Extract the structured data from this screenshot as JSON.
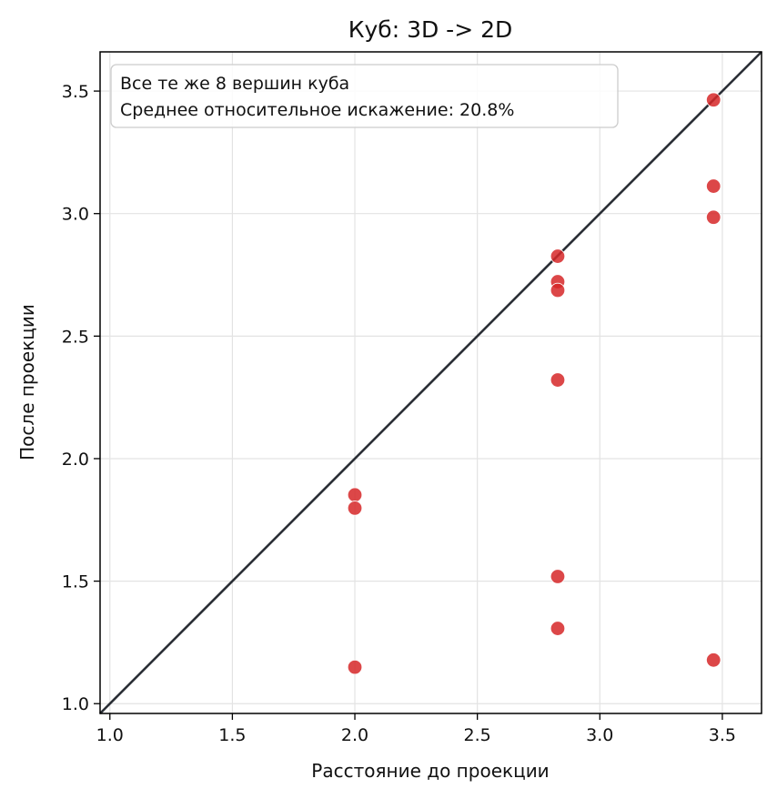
{
  "chart_data": {
    "type": "scatter",
    "title": "Куб: 3D -> 2D",
    "xlabel": "Расстояние до проекции",
    "ylabel": "После проекции",
    "xlim": [
      0.96,
      3.66
    ],
    "ylim": [
      0.96,
      3.66
    ],
    "x_ticks": [
      1.0,
      1.5,
      2.0,
      2.5,
      3.0,
      3.5
    ],
    "x_tick_labels": [
      "1.0",
      "1.5",
      "2.0",
      "2.5",
      "3.0",
      "3.5"
    ],
    "y_ticks": [
      1.0,
      1.5,
      2.0,
      2.5,
      3.0,
      3.5
    ],
    "y_tick_labels": [
      "1.0",
      "1.5",
      "2.0",
      "2.5",
      "3.0",
      "3.5"
    ],
    "grid": true,
    "point_color": "#d62728",
    "line_color": "#2b2f36",
    "reference_line": {
      "x": [
        0.96,
        3.66
      ],
      "y": [
        0.96,
        3.66
      ]
    },
    "points": [
      {
        "x": 2.0,
        "y": 1.852
      },
      {
        "x": 2.0,
        "y": 1.798
      },
      {
        "x": 2.0,
        "y": 1.149
      },
      {
        "x": 2.828,
        "y": 2.826
      },
      {
        "x": 2.828,
        "y": 2.722
      },
      {
        "x": 2.828,
        "y": 2.687
      },
      {
        "x": 2.828,
        "y": 2.321
      },
      {
        "x": 2.828,
        "y": 1.519
      },
      {
        "x": 2.828,
        "y": 1.307
      },
      {
        "x": 3.464,
        "y": 3.464
      },
      {
        "x": 3.464,
        "y": 3.112
      },
      {
        "x": 3.464,
        "y": 2.985
      },
      {
        "x": 3.464,
        "y": 1.178
      }
    ],
    "annotation": {
      "line1": "Все те же 8 вершин куба",
      "line2": "Среднее относительное искажение: 20.8%"
    }
  }
}
